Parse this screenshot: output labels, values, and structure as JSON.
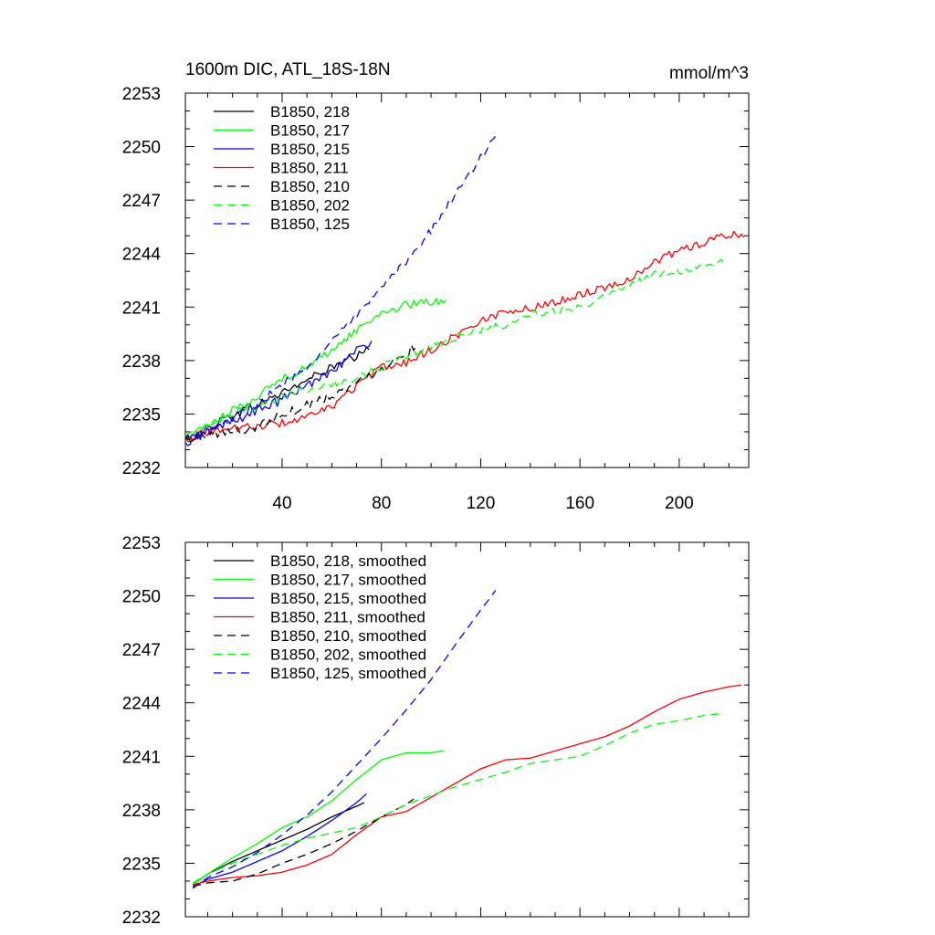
{
  "chart_data": [
    {
      "type": "line",
      "title": "1600m DIC, ATL_18S-18N",
      "units": "mmol/m^3",
      "xlim": [
        1,
        228
      ],
      "ylim": [
        2232,
        2253
      ],
      "xticks": [
        40,
        80,
        120,
        160,
        200
      ],
      "yticks": [
        2232,
        2235,
        2238,
        2241,
        2244,
        2247,
        2250,
        2253
      ],
      "show_xtick_labels": true,
      "legend_position": "top-left",
      "series": [
        {
          "name": "B1850, 218",
          "color": "#000000",
          "dash": "solid",
          "x": [
            1,
            10,
            20,
            30,
            40,
            50,
            60,
            65,
            70,
            75
          ],
          "y": [
            2233.5,
            2234.2,
            2235.0,
            2235.5,
            2236.2,
            2236.9,
            2237.6,
            2237.9,
            2238.2,
            2238.6
          ],
          "noise": 0.28
        },
        {
          "name": "B1850, 217",
          "color": "#00ff00",
          "dash": "solid",
          "x": [
            1,
            10,
            20,
            30,
            40,
            50,
            60,
            70,
            80,
            90,
            100,
            106
          ],
          "y": [
            2233.6,
            2234.3,
            2235.2,
            2236.0,
            2237.0,
            2237.6,
            2238.6,
            2239.7,
            2240.7,
            2241.1,
            2241.3,
            2241.4
          ],
          "noise": 0.22
        },
        {
          "name": "B1850, 215",
          "color": "#0000ff",
          "dash": "solid",
          "x": [
            1,
            10,
            20,
            30,
            40,
            50,
            60,
            70,
            76
          ],
          "y": [
            2233.5,
            2234.0,
            2234.6,
            2235.2,
            2235.8,
            2236.6,
            2237.5,
            2238.5,
            2239.1
          ],
          "noise": 0.28
        },
        {
          "name": "B1850, 211",
          "color": "#ff0000",
          "dash": "solid",
          "x": [
            1,
            10,
            20,
            30,
            40,
            50,
            60,
            70,
            80,
            90,
            100,
            110,
            120,
            130,
            140,
            150,
            160,
            170,
            180,
            190,
            200,
            210,
            220,
            226
          ],
          "y": [
            2233.6,
            2234.0,
            2234.2,
            2234.3,
            2234.5,
            2234.8,
            2235.4,
            2236.6,
            2237.6,
            2237.9,
            2238.6,
            2239.4,
            2240.2,
            2240.8,
            2240.9,
            2241.3,
            2241.7,
            2242.1,
            2242.6,
            2243.5,
            2244.2,
            2244.6,
            2245.1,
            2244.9
          ],
          "noise": 0.22
        },
        {
          "name": "B1850, 210",
          "color": "#000000",
          "dash": "dashed",
          "x": [
            1,
            10,
            20,
            30,
            40,
            50,
            60,
            70,
            80,
            90,
            94
          ],
          "y": [
            2233.6,
            2233.9,
            2234.0,
            2234.3,
            2235.0,
            2235.5,
            2236.1,
            2236.7,
            2237.6,
            2238.4,
            2238.9
          ],
          "noise": 0.28
        },
        {
          "name": "B1850, 202",
          "color": "#00ff00",
          "dash": "dashed",
          "x": [
            1,
            10,
            20,
            30,
            40,
            50,
            60,
            70,
            80,
            90,
            100,
            110,
            120,
            130,
            140,
            150,
            160,
            170,
            180,
            190,
            200,
            210,
            219
          ],
          "y": [
            2233.7,
            2234.3,
            2235.0,
            2235.5,
            2236.0,
            2236.4,
            2236.7,
            2237.0,
            2237.6,
            2238.3,
            2238.8,
            2239.3,
            2239.7,
            2240.0,
            2240.6,
            2240.8,
            2241.0,
            2241.6,
            2242.3,
            2242.8,
            2243.0,
            2243.3,
            2243.5
          ],
          "noise": 0.22
        },
        {
          "name": "B1850, 125",
          "color": "#0000ff",
          "dash": "dashed",
          "x": [
            1,
            10,
            20,
            30,
            40,
            50,
            60,
            70,
            80,
            90,
            100,
            110,
            120,
            127
          ],
          "y": [
            2233.3,
            2234.2,
            2234.8,
            2235.6,
            2236.6,
            2237.7,
            2239.0,
            2240.5,
            2242.0,
            2243.6,
            2245.3,
            2247.3,
            2249.4,
            2250.8
          ],
          "noise": 0.22
        }
      ]
    },
    {
      "type": "line",
      "title": "",
      "units": "",
      "xlim": [
        1,
        228
      ],
      "ylim": [
        2232,
        2253
      ],
      "xticks": [
        40,
        80,
        120,
        160,
        200
      ],
      "yticks": [
        2232,
        2235,
        2238,
        2241,
        2244,
        2247,
        2250,
        2253
      ],
      "show_xtick_labels": false,
      "legend_position": "top-left",
      "series": [
        {
          "name": "B1850, 218, smoothed",
          "color": "#000000",
          "dash": "solid",
          "x": [
            4,
            10,
            20,
            30,
            40,
            50,
            60,
            65,
            70,
            73
          ],
          "y": [
            2233.8,
            2234.4,
            2235.1,
            2235.7,
            2236.3,
            2236.9,
            2237.6,
            2237.9,
            2238.2,
            2238.4
          ],
          "noise": 0
        },
        {
          "name": "B1850, 217, smoothed",
          "color": "#00ff00",
          "dash": "solid",
          "x": [
            4,
            10,
            20,
            30,
            40,
            50,
            60,
            70,
            80,
            90,
            100,
            105
          ],
          "y": [
            2233.8,
            2234.4,
            2235.3,
            2236.1,
            2237.0,
            2237.6,
            2238.5,
            2239.7,
            2240.8,
            2241.2,
            2241.2,
            2241.3
          ],
          "noise": 0
        },
        {
          "name": "B1850, 215, smoothed",
          "color": "#0000ff",
          "dash": "solid",
          "x": [
            4,
            10,
            20,
            30,
            40,
            50,
            60,
            70,
            74
          ],
          "y": [
            2233.7,
            2234.1,
            2234.5,
            2235.1,
            2235.7,
            2236.5,
            2237.4,
            2238.4,
            2238.9
          ],
          "noise": 0
        },
        {
          "name": "B1850, 211, smoothed",
          "color": "#ff0000",
          "dash": "solid",
          "x": [
            4,
            10,
            20,
            30,
            40,
            50,
            60,
            70,
            80,
            90,
            100,
            110,
            120,
            130,
            140,
            150,
            160,
            170,
            180,
            190,
            200,
            210,
            220,
            225
          ],
          "y": [
            2233.8,
            2234.0,
            2234.2,
            2234.3,
            2234.5,
            2234.9,
            2235.5,
            2236.6,
            2237.6,
            2237.9,
            2238.7,
            2239.5,
            2240.3,
            2240.8,
            2240.9,
            2241.3,
            2241.7,
            2242.1,
            2242.7,
            2243.5,
            2244.2,
            2244.6,
            2244.9,
            2245.0
          ],
          "noise": 0
        },
        {
          "name": "B1850, 210, smoothed",
          "color": "#000000",
          "dash": "dashed",
          "x": [
            4,
            10,
            20,
            30,
            40,
            50,
            60,
            70,
            80,
            90,
            93
          ],
          "y": [
            2233.7,
            2233.9,
            2234.0,
            2234.4,
            2235.0,
            2235.5,
            2236.1,
            2236.8,
            2237.6,
            2238.3,
            2238.6
          ],
          "noise": 0
        },
        {
          "name": "B1850, 202, smoothed",
          "color": "#00ff00",
          "dash": "dashed",
          "x": [
            4,
            10,
            20,
            30,
            40,
            50,
            60,
            70,
            80,
            90,
            100,
            110,
            120,
            130,
            140,
            150,
            160,
            170,
            180,
            190,
            200,
            210,
            218
          ],
          "y": [
            2233.9,
            2234.4,
            2235.0,
            2235.5,
            2236.0,
            2236.4,
            2236.7,
            2237.0,
            2237.6,
            2238.3,
            2238.8,
            2239.3,
            2239.7,
            2240.1,
            2240.6,
            2240.8,
            2241.0,
            2241.6,
            2242.3,
            2242.8,
            2243.0,
            2243.3,
            2243.4
          ],
          "noise": 0
        },
        {
          "name": "B1850, 125, smoothed",
          "color": "#0000ff",
          "dash": "dashed",
          "x": [
            4,
            10,
            20,
            30,
            40,
            50,
            60,
            70,
            80,
            90,
            100,
            110,
            120,
            126
          ],
          "y": [
            2233.6,
            2234.2,
            2234.8,
            2235.6,
            2236.6,
            2237.7,
            2239.0,
            2240.5,
            2242.0,
            2243.6,
            2245.3,
            2247.3,
            2249.2,
            2250.3
          ],
          "noise": 0
        }
      ]
    }
  ]
}
